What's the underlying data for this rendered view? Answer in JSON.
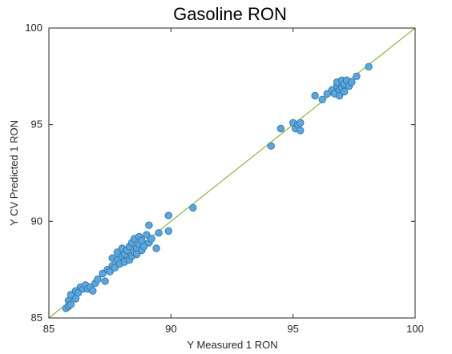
{
  "chart_data": {
    "type": "scatter",
    "title": "Gasoline RON",
    "xlabel": "Y Measured 1 RON",
    "ylabel": "Y CV Predicted 1 RON",
    "xlim": [
      85,
      100
    ],
    "ylim": [
      85,
      100
    ],
    "xticks": [
      "85",
      "90",
      "95",
      "100"
    ],
    "yticks": [
      "85",
      "90",
      "95",
      "100"
    ],
    "grid": false,
    "reference_line": {
      "from": [
        85,
        85
      ],
      "to": [
        100,
        100
      ],
      "color": "#8ab340"
    },
    "marker_color": "#5aa6df",
    "marker_edge": "#2f6f9f",
    "points": [
      [
        85.7,
        85.5
      ],
      [
        85.8,
        85.6
      ],
      [
        85.8,
        85.9
      ],
      [
        85.9,
        85.7
      ],
      [
        85.9,
        86.2
      ],
      [
        86.1,
        86.0
      ],
      [
        86.1,
        86.4
      ],
      [
        86.2,
        86.3
      ],
      [
        86.3,
        86.6
      ],
      [
        86.4,
        86.5
      ],
      [
        86.5,
        86.7
      ],
      [
        86.6,
        86.5
      ],
      [
        86.7,
        86.6
      ],
      [
        86.8,
        86.4
      ],
      [
        86.9,
        86.8
      ],
      [
        87.0,
        87.0
      ],
      [
        87.2,
        87.3
      ],
      [
        87.3,
        86.9
      ],
      [
        87.4,
        87.5
      ],
      [
        87.5,
        87.4
      ],
      [
        87.6,
        87.7
      ],
      [
        87.6,
        88.1
      ],
      [
        87.7,
        87.6
      ],
      [
        87.8,
        88.0
      ],
      [
        87.8,
        88.4
      ],
      [
        87.9,
        87.8
      ],
      [
        88.0,
        88.2
      ],
      [
        88.0,
        88.6
      ],
      [
        88.1,
        87.9
      ],
      [
        88.1,
        88.3
      ],
      [
        88.2,
        88.5
      ],
      [
        88.3,
        88.0
      ],
      [
        88.3,
        88.7
      ],
      [
        88.4,
        88.2
      ],
      [
        88.4,
        88.9
      ],
      [
        88.5,
        88.4
      ],
      [
        88.5,
        89.1
      ],
      [
        88.6,
        88.6
      ],
      [
        88.6,
        88.3
      ],
      [
        88.7,
        88.8
      ],
      [
        88.7,
        89.2
      ],
      [
        88.8,
        88.5
      ],
      [
        88.8,
        89.0
      ],
      [
        88.9,
        88.7
      ],
      [
        89.0,
        89.3
      ],
      [
        89.1,
        88.9
      ],
      [
        89.1,
        89.8
      ],
      [
        89.2,
        89.1
      ],
      [
        89.4,
        88.6
      ],
      [
        89.5,
        89.4
      ],
      [
        89.9,
        90.3
      ],
      [
        89.9,
        89.5
      ],
      [
        90.9,
        90.7
      ],
      [
        94.1,
        93.9
      ],
      [
        94.5,
        94.8
      ],
      [
        95.0,
        95.1
      ],
      [
        95.1,
        94.8
      ],
      [
        95.2,
        95.0
      ],
      [
        95.3,
        94.7
      ],
      [
        95.3,
        95.1
      ],
      [
        95.9,
        96.5
      ],
      [
        96.2,
        96.3
      ],
      [
        96.4,
        96.6
      ],
      [
        96.6,
        96.8
      ],
      [
        96.7,
        96.6
      ],
      [
        96.8,
        97.0
      ],
      [
        96.8,
        97.2
      ],
      [
        96.9,
        96.8
      ],
      [
        96.9,
        96.5
      ],
      [
        97.0,
        97.3
      ],
      [
        97.0,
        96.9
      ],
      [
        97.1,
        97.1
      ],
      [
        97.1,
        96.7
      ],
      [
        97.2,
        97.3
      ],
      [
        97.3,
        97.0
      ],
      [
        97.4,
        97.2
      ],
      [
        97.6,
        97.5
      ],
      [
        98.1,
        98.0
      ]
    ]
  }
}
